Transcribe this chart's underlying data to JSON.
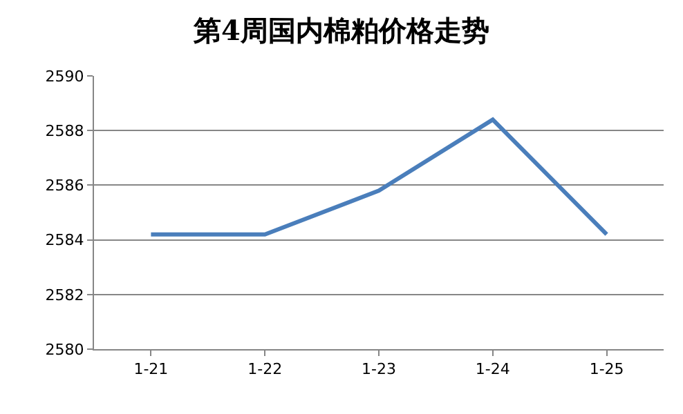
{
  "chart_data": {
    "type": "line",
    "title": "第4周国内棉粕价格走势",
    "categories": [
      "1-21",
      "1-22",
      "1-23",
      "1-24",
      "1-25"
    ],
    "series": [
      {
        "color": "#4a7ebb",
        "values": [
          2584.2,
          2584.2,
          2585.8,
          2588.4,
          2584.2
        ]
      }
    ],
    "ylim": [
      2580,
      2590
    ],
    "yticks": [
      2580,
      2582,
      2584,
      2586,
      2588,
      2590
    ],
    "grid": "y",
    "legend": false,
    "marker": "none",
    "line_style": "solid"
  }
}
